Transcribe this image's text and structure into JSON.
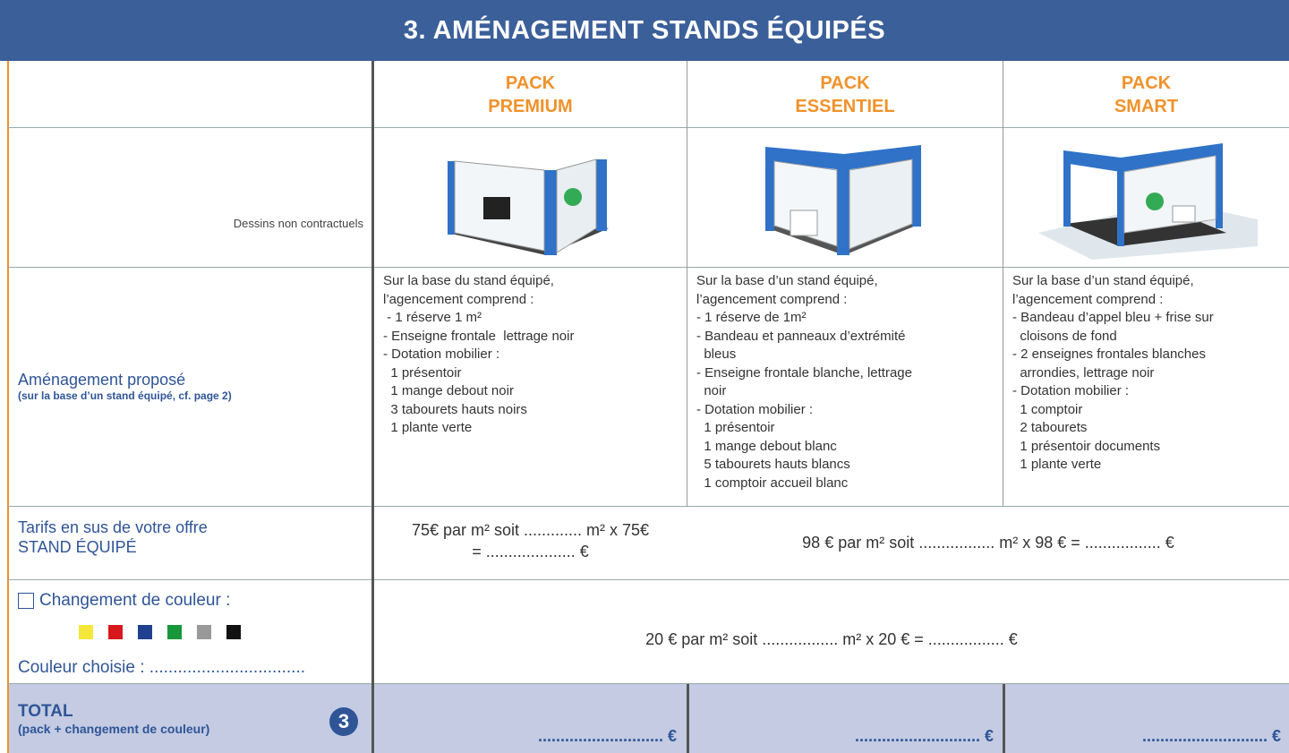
{
  "header": {
    "title": "3. AMÉNAGEMENT STANDS ÉQUIPÉS"
  },
  "packs": [
    {
      "line1": "PACK",
      "line2": "PREMIUM"
    },
    {
      "line1": "PACK",
      "line2": "ESSENTIEL"
    },
    {
      "line1": "PACK",
      "line2": "SMART"
    }
  ],
  "disclaimer": "Dessins non contractuels",
  "amenagement": {
    "label": "Aménagement proposé",
    "sublabel": "(sur la base d’un stand équipé, cf. page 2)",
    "descriptions": [
      [
        "Sur la base du stand équipé,",
        "l’agencement comprend :",
        " - 1 réserve 1 m²",
        "- Enseigne frontale  lettrage noir",
        "- Dotation mobilier :",
        "  1 présentoir",
        "  1 mange debout noir",
        "  3 tabourets hauts noirs",
        "  1 plante verte"
      ],
      [
        "Sur la base d’un stand équipé,",
        "l’agencement comprend :",
        "- 1 réserve de 1m²",
        "- Bandeau et panneaux d’extrémité",
        "  bleus",
        "- Enseigne frontale blanche, lettrage",
        "  noir",
        "- Dotation mobilier :",
        "  1 présentoir",
        "  1 mange debout blanc",
        "  5 tabourets hauts blancs",
        "  1 comptoir accueil blanc"
      ],
      [
        "Sur la base d’un stand équipé,",
        "l’agencement comprend :",
        "- Bandeau d’appel bleu + frise sur",
        "  cloisons de fond",
        "- 2 enseignes frontales blanches",
        "  arrondies, lettrage noir",
        "- Dotation mobilier :",
        "  1 comptoir",
        "  2 tabourets",
        "  1 présentoir documents",
        "  1 plante verte"
      ]
    ]
  },
  "tarifs": {
    "label_line1": "Tarifs en sus de votre offre",
    "label_line2": "STAND ÉQUIPÉ",
    "premium_line1": "75€ par m² soit ............. m² x 75€",
    "premium_line2": "= .................... €",
    "others": "98 € par m² soit ................. m² x  98 € =  ................. €"
  },
  "couleur": {
    "label": "Changement de couleur :",
    "chosen": "Couleur choisie : .................................",
    "price": "20 € par m² soit ................. m² x 20 € =  ................. €"
  },
  "total": {
    "label": "TOTAL",
    "sublabel": "(pack + changement de couleur)",
    "badge": "3",
    "amounts": [
      "............................ €",
      "............................ €",
      "............................ €"
    ]
  }
}
